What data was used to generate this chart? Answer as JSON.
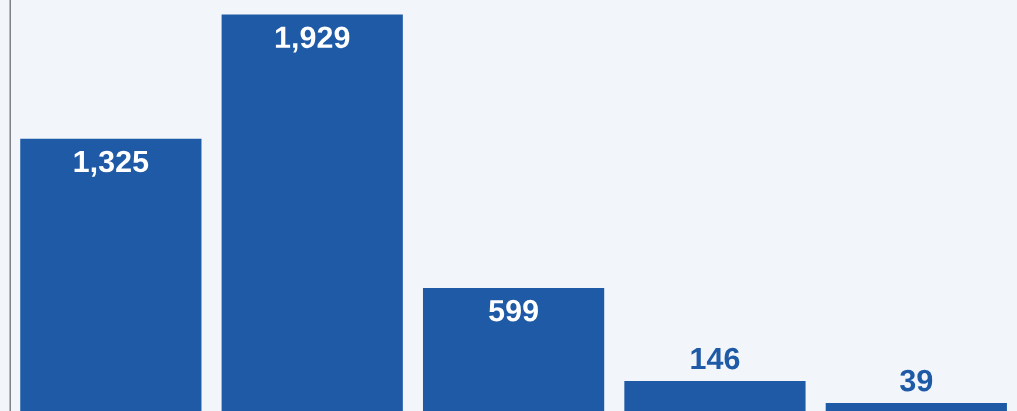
{
  "chart_data": {
    "type": "bar",
    "categories": [
      null,
      null,
      null,
      null,
      null
    ],
    "values": [
      1325,
      1929,
      599,
      146,
      39
    ],
    "value_labels": [
      "1,325",
      "1,929",
      "599",
      "146",
      "39"
    ],
    "color": "#1f5aa6",
    "ylim": [
      0,
      2000
    ],
    "grid": false
  }
}
